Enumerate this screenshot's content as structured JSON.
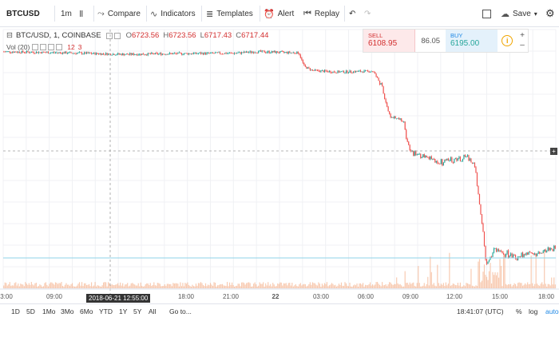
{
  "toolbar": {
    "symbol": "BTCUSD",
    "interval": "1m",
    "compare": "Compare",
    "indicators": "Indicators",
    "templates": "Templates",
    "alert": "Alert",
    "replay": "Replay",
    "save": "Save"
  },
  "legend": {
    "title": "BTC/USD, 1, COINBASE",
    "open_key": "O",
    "open": "6723.56",
    "high_key": "H",
    "high": "6723.56",
    "low_key": "L",
    "low": "6717.43",
    "close_key": "C",
    "close": "6717.44",
    "volume_label": "Vol (20)",
    "volume_values": [
      "12",
      "3"
    ]
  },
  "trade": {
    "sell_label": "SELL",
    "sell_price": "6108.95",
    "spread": "86.05",
    "buy_label": "BUY",
    "buy_price": "6195.00"
  },
  "crosshair_time": "2018-06-21 12:55:00",
  "time_axis": {
    "labels": [
      "3:00",
      "09:00",
      "15:00",
      "18:00",
      "21:00",
      "22",
      "03:00",
      "06:00",
      "09:00",
      "12:00",
      "15:00",
      "18:00"
    ]
  },
  "bottom": {
    "ranges": [
      "1D",
      "5D",
      "1Mo",
      "3Mo",
      "6Mo",
      "YTD",
      "1Y",
      "5Y",
      "All"
    ],
    "goto": "Go to...",
    "clock": "18:41:07 (UTC)",
    "pct": "%",
    "log": "log",
    "auto": "auto"
  },
  "colors": {
    "up": "#26a69a",
    "down": "#ef5350",
    "volume": "#f4a97e",
    "crosshair": "#9e9e9e",
    "price_line": "#8fd3e8"
  },
  "chart_data": {
    "type": "candlestick",
    "series": [
      {
        "name": "BTC/USD, 1, COINBASE",
        "x": [
          "3:00",
          "09:00",
          "15:00",
          "18:00",
          "21:00",
          "22",
          "03:00",
          "06:00",
          "09:00",
          "12:00",
          "15:00",
          "18:00"
        ],
        "close": [
          6729,
          6725,
          6722,
          6723,
          6727,
          6717,
          6650,
          6622,
          6415,
          6290,
          6157,
          6190
        ]
      }
    ]
  }
}
